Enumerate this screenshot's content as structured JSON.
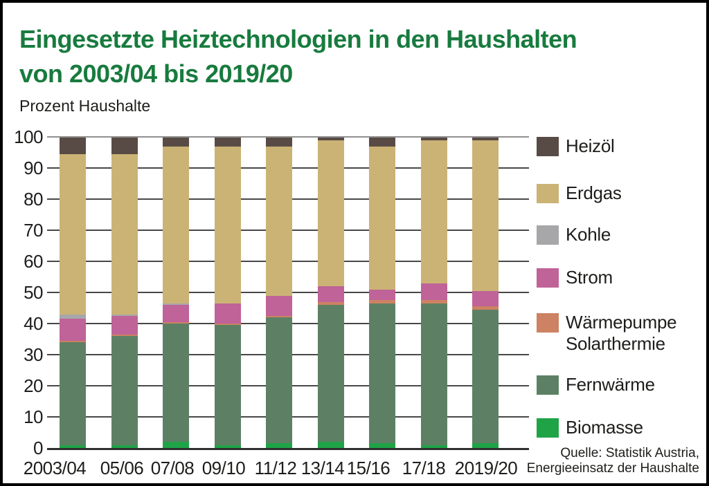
{
  "title": {
    "line1": "Eingesetzte Heiztechnologien in den Haushalten",
    "line2": "von 2003/04 bis 2019/20"
  },
  "subtitle": "Prozent Haushalte",
  "source": {
    "line1": "Quelle: Statistik Austria,",
    "line2": "Energieeinsatz der Haushalte"
  },
  "colors": {
    "title_green": "#187b3e",
    "text": "#1d1d1b",
    "grid": "#474747",
    "grid_top": "#8f8f8f",
    "axis": "#2f2f2f"
  },
  "chart_data": {
    "type": "bar",
    "stacked": true,
    "title": "Eingesetzte Heiztechnologien in den Haushalten von 2003/04 bis 2019/20",
    "ylabel": "Prozent Haushalte",
    "xlabel": "",
    "ylim": [
      0,
      100
    ],
    "yticks": [
      0,
      10,
      20,
      30,
      40,
      50,
      60,
      70,
      80,
      90,
      100
    ],
    "grid": true,
    "legend_position": "right",
    "categories": [
      "2003/04",
      "05/06",
      "07/08",
      "09/10",
      "11/12",
      "13/14",
      "15/16",
      "17/18",
      "2019/20"
    ],
    "series": [
      {
        "name": "Biomasse",
        "color": "#1fa347",
        "values": [
          1,
          1,
          2,
          1,
          1.5,
          2,
          1.5,
          1,
          1.5
        ]
      },
      {
        "name": "Fernwärme",
        "color": "#5d8064",
        "values": [
          33,
          35,
          38,
          38.5,
          40.5,
          44,
          45,
          45.5,
          43
        ]
      },
      {
        "name": "Wärmepumpe Solarthermie",
        "color": "#cd8263",
        "values": [
          0.5,
          0.5,
          0.5,
          0.5,
          0.5,
          1,
          1,
          1,
          1
        ]
      },
      {
        "name": "Strom",
        "color": "#bf6398",
        "values": [
          7,
          6,
          5.5,
          6.5,
          6.5,
          5,
          3.5,
          5.5,
          5
        ]
      },
      {
        "name": "Kohle",
        "color": "#a7a7a9",
        "values": [
          1.5,
          0.5,
          0.5,
          0,
          0,
          0,
          0,
          0,
          0
        ]
      },
      {
        "name": "Erdgas",
        "color": "#cbb375",
        "values": [
          51.5,
          51.5,
          50.5,
          50.5,
          48,
          47,
          46,
          46,
          48.5
        ]
      },
      {
        "name": "Heizöl",
        "color": "#584b45",
        "values": [
          5.5,
          5.5,
          3,
          3,
          3,
          1,
          3,
          1,
          1
        ]
      }
    ],
    "legend": [
      {
        "lines": [
          "Heizöl"
        ],
        "color": "#584b45"
      },
      {
        "lines": [
          "Erdgas"
        ],
        "color": "#cbb375"
      },
      {
        "lines": [
          "Kohle"
        ],
        "color": "#a7a7a9"
      },
      {
        "lines": [
          "Strom"
        ],
        "color": "#bf6398"
      },
      {
        "lines": [
          "Wärmepumpe",
          "Solarthermie"
        ],
        "color": "#cd8263"
      },
      {
        "lines": [
          "Fernwärme"
        ],
        "color": "#5d8064"
      },
      {
        "lines": [
          "Biomasse"
        ],
        "color": "#1fa347"
      }
    ]
  }
}
